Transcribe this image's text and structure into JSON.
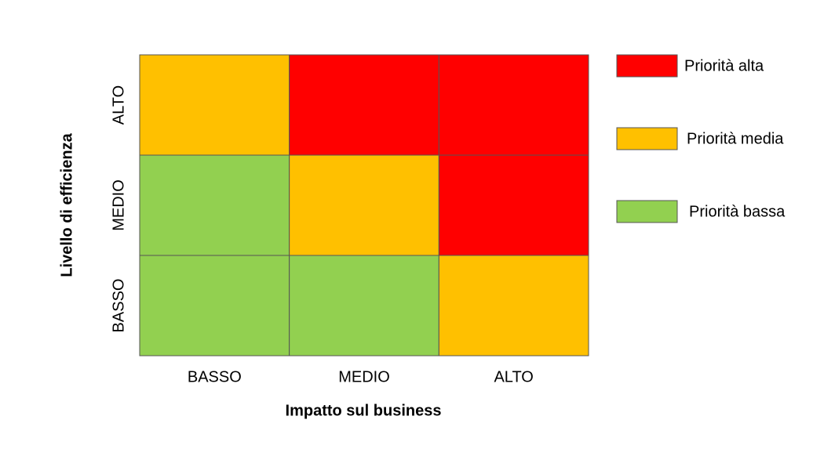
{
  "x_axis": {
    "title": "Impatto sul business",
    "labels": [
      "BASSO",
      "MEDIO",
      "ALTO"
    ]
  },
  "y_axis": {
    "title": "Livello di efficienza",
    "labels": [
      "ALTO",
      "MEDIO",
      "BASSO"
    ]
  },
  "cells": [
    [
      "#ffc000",
      "#ff0000",
      "#ff0000"
    ],
    [
      "#92d050",
      "#ffc000",
      "#ff0000"
    ],
    [
      "#92d050",
      "#92d050",
      "#ffc000"
    ]
  ],
  "legend": [
    {
      "label": "Priorità alta",
      "color": "#ff0000"
    },
    {
      "label": "Priorità media",
      "color": "#ffc000"
    },
    {
      "label": "Priorità bassa",
      "color": "#92d050"
    }
  ]
}
